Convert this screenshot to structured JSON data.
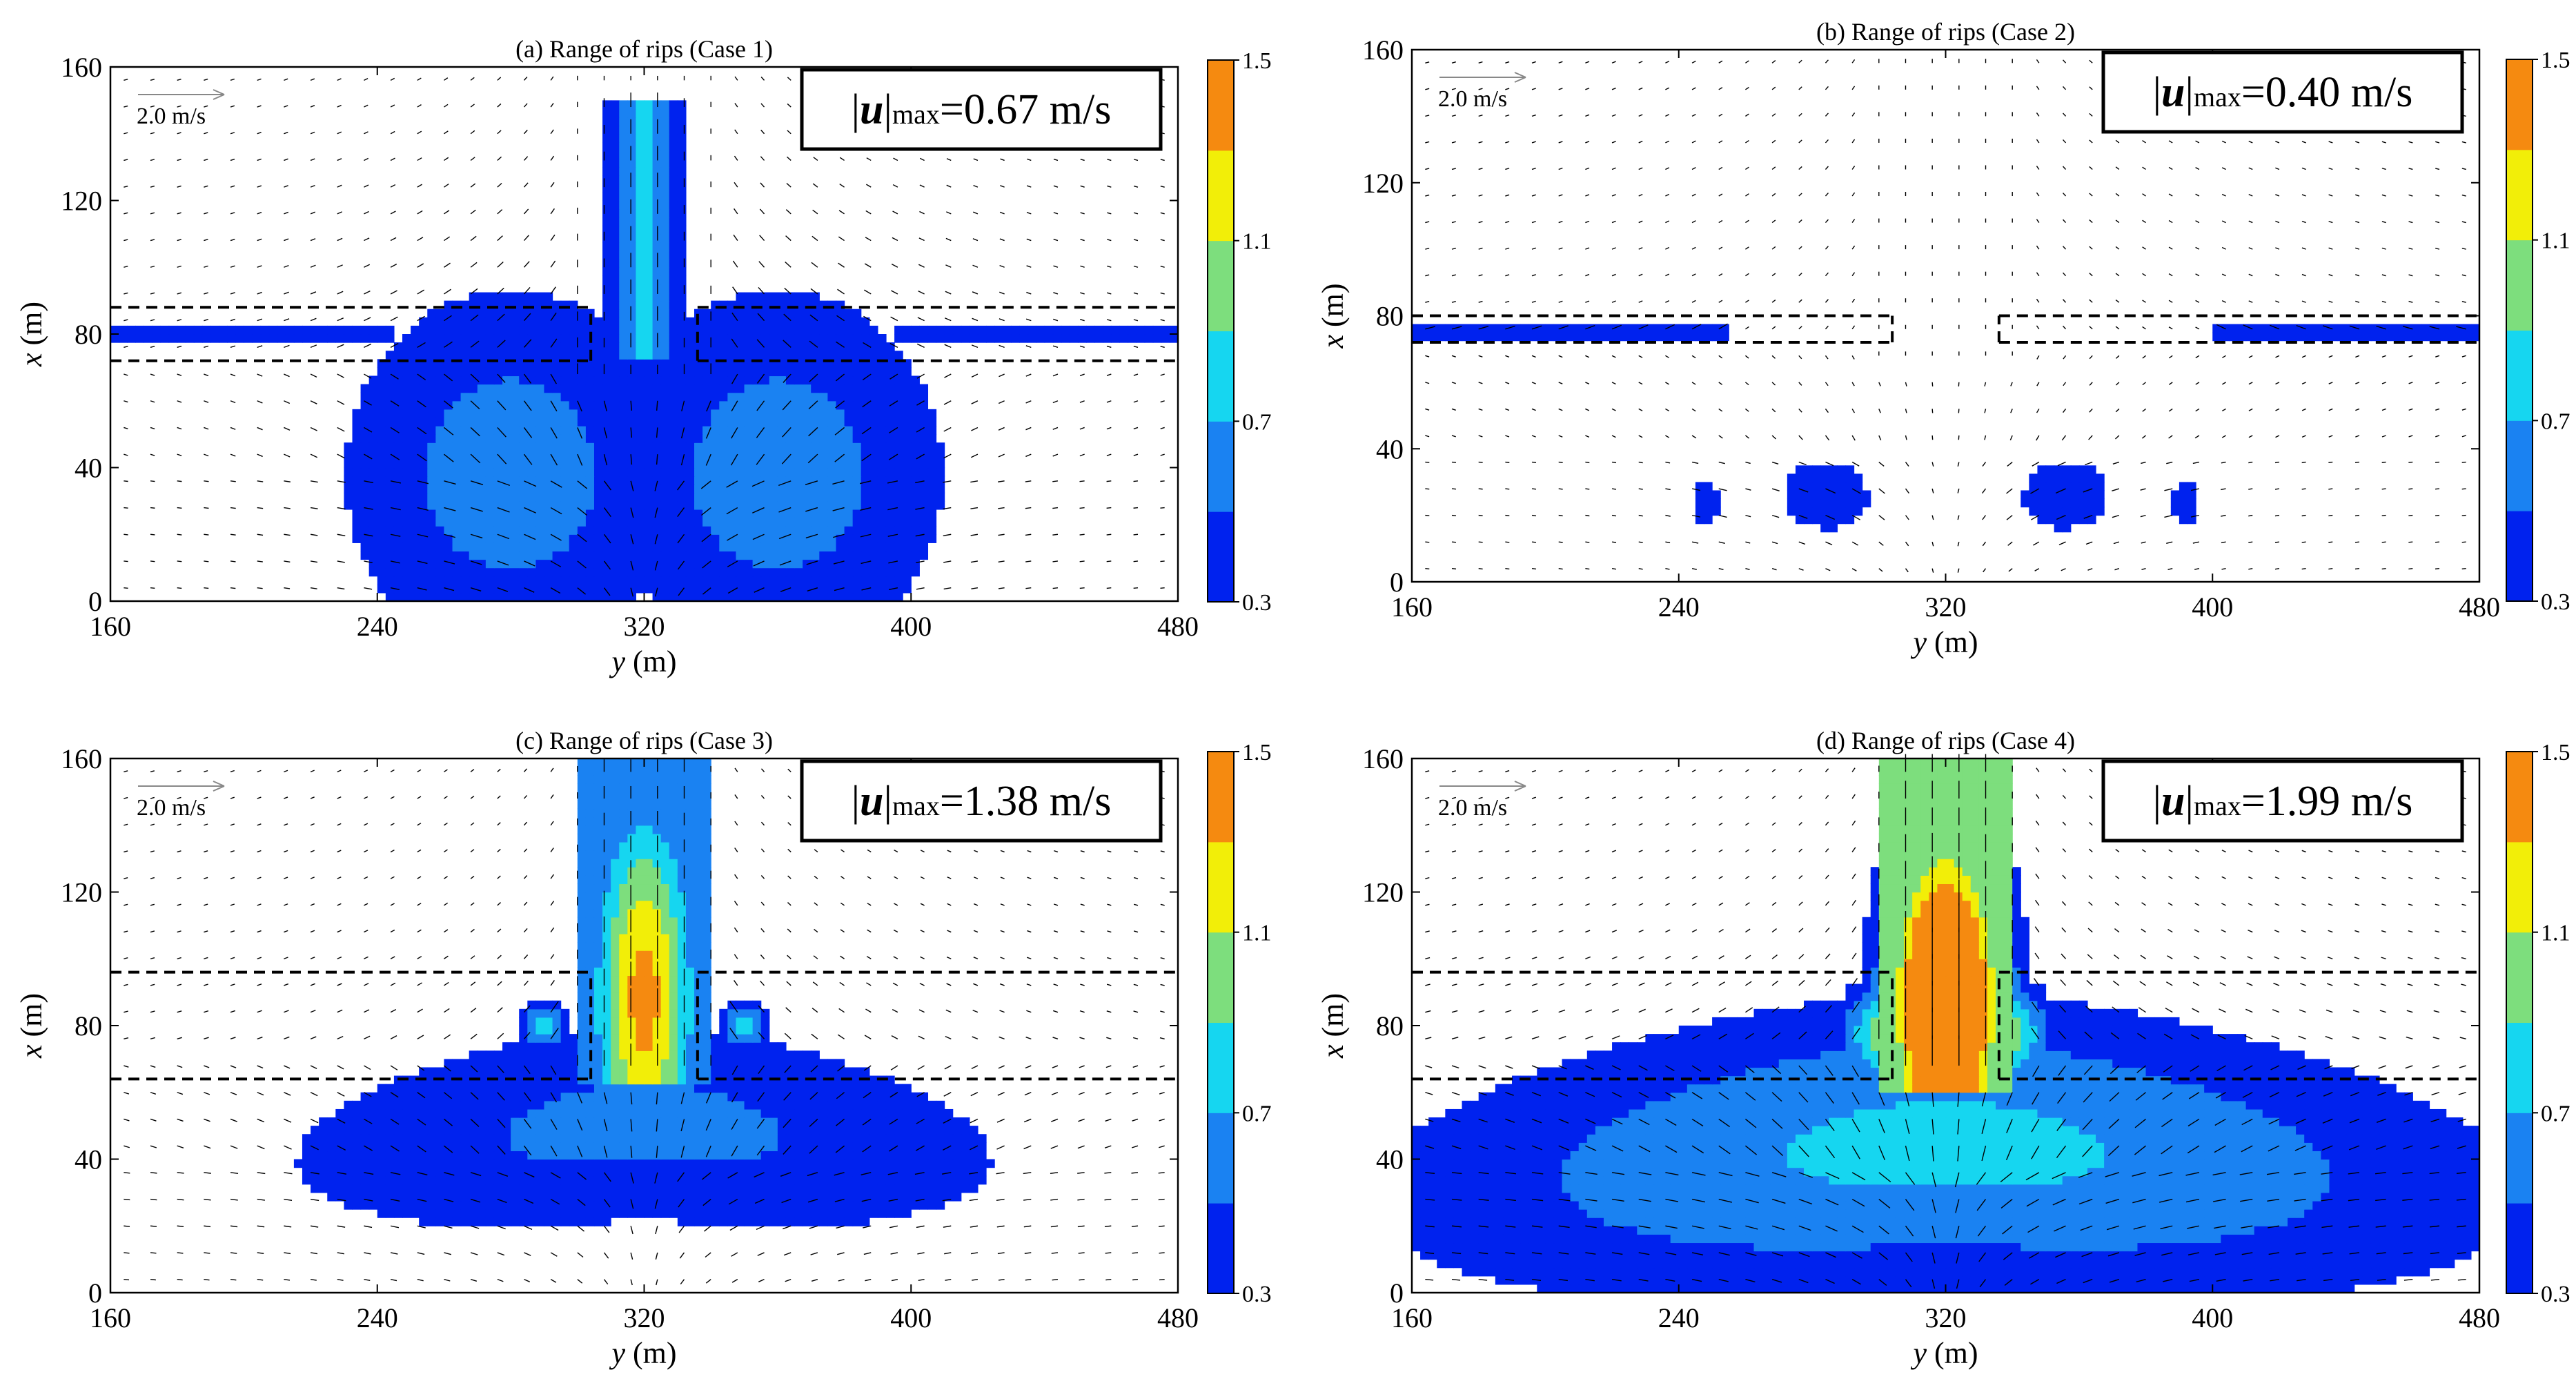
{
  "figure": {
    "panels": [
      {
        "id": "a",
        "title": "(a) Range of rips (Case 1)",
        "umax_prefix": "|",
        "umax_symbol": "u",
        "umax_bar": "|",
        "umax_sub": "max",
        "umax_value": "=0.67 m/s",
        "umax_num": 0.67,
        "x_top": 160,
        "ref_arrow_label": "2.0 m/s"
      },
      {
        "id": "b",
        "title": "(b) Range of rips (Case 2)",
        "umax_prefix": "|",
        "umax_symbol": "u",
        "umax_bar": "|",
        "umax_sub": "max",
        "umax_value": "=0.40 m/s",
        "umax_num": 0.4,
        "x_top": 160,
        "ref_arrow_label": "2.0 m/s"
      },
      {
        "id": "c",
        "title": "(c) Range of rips (Case 3)",
        "umax_prefix": "|",
        "umax_symbol": "u",
        "umax_bar": "|",
        "umax_sub": "max",
        "umax_value": "=1.38 m/s",
        "umax_num": 1.38,
        "x_top": 160,
        "ref_arrow_label": "2.0 m/s"
      },
      {
        "id": "d",
        "title": "(d) Range of rips (Case 4)",
        "umax_prefix": "|",
        "umax_symbol": "u",
        "umax_bar": "|",
        "umax_sub": "max",
        "umax_value": "=1.99 m/s",
        "umax_num": 1.99,
        "x_top": 160,
        "ref_arrow_label": "2.0 m/s"
      }
    ],
    "colors": {
      "background": "#ffffff",
      "arrow": "#000000",
      "dashed": "#000000"
    }
  },
  "chart_data": [
    {
      "type": "heatmap",
      "title": "(a) Range of rips (Case 1)",
      "xlabel": "y (m)",
      "ylabel": "x (m)",
      "xlim": [
        160,
        480
      ],
      "ylim": [
        0,
        160
      ],
      "xticks": [
        160,
        240,
        320,
        400,
        480
      ],
      "yticks": [
        0,
        40,
        80,
        120,
        160
      ],
      "colorbar": {
        "levels": [
          0.3,
          0.5,
          0.7,
          0.9,
          1.1,
          1.3,
          1.5
        ],
        "ticks": [
          0.3,
          0.7,
          1.1,
          1.5
        ],
        "colors": [
          "#0022ee",
          "#1a82f2",
          "#16d6f0",
          "#7dde7d",
          "#f2ee08",
          "#f58a10"
        ]
      },
      "max_speed_ms": 0.67,
      "reference_arrow_ms": 2.0,
      "breakwater_x": [
        72,
        88
      ],
      "gap_y": [
        304,
        336
      ]
    },
    {
      "type": "heatmap",
      "title": "(b) Range of rips (Case 2)",
      "xlabel": "y (m)",
      "ylabel": "x (m)",
      "xlim": [
        160,
        480
      ],
      "ylim": [
        0,
        160
      ],
      "xticks": [
        160,
        240,
        320,
        400,
        480
      ],
      "yticks": [
        0,
        40,
        80,
        120,
        160
      ],
      "colorbar": {
        "levels": [
          0.3,
          0.5,
          0.7,
          0.9,
          1.1,
          1.3,
          1.5
        ],
        "ticks": [
          0.3,
          0.7,
          1.1,
          1.5
        ],
        "colors": [
          "#0022ee",
          "#1a82f2",
          "#16d6f0",
          "#7dde7d",
          "#f2ee08",
          "#f58a10"
        ]
      },
      "max_speed_ms": 0.4,
      "reference_arrow_ms": 2.0,
      "breakwater_x": [
        72,
        80
      ],
      "gap_y": [
        304,
        336
      ]
    },
    {
      "type": "heatmap",
      "title": "(c) Range of rips (Case 3)",
      "xlabel": "y (m)",
      "ylabel": "x (m)",
      "xlim": [
        160,
        480
      ],
      "ylim": [
        0,
        160
      ],
      "xticks": [
        160,
        240,
        320,
        400,
        480
      ],
      "yticks": [
        0,
        40,
        80,
        120,
        160
      ],
      "colorbar": {
        "levels": [
          0.3,
          0.5,
          0.7,
          0.9,
          1.1,
          1.3,
          1.5
        ],
        "ticks": [
          0.3,
          0.7,
          1.1,
          1.5
        ],
        "colors": [
          "#0022ee",
          "#1a82f2",
          "#16d6f0",
          "#7dde7d",
          "#f2ee08",
          "#f58a10"
        ]
      },
      "max_speed_ms": 1.38,
      "reference_arrow_ms": 2.0,
      "breakwater_x": [
        64,
        96
      ],
      "gap_y": [
        304,
        336
      ]
    },
    {
      "type": "heatmap",
      "title": "(d) Range of rips (Case 4)",
      "xlabel": "y (m)",
      "ylabel": "x (m)",
      "xlim": [
        160,
        480
      ],
      "ylim": [
        0,
        160
      ],
      "xticks": [
        160,
        240,
        320,
        400,
        480
      ],
      "yticks": [
        0,
        40,
        80,
        120,
        160
      ],
      "colorbar": {
        "levels": [
          0.3,
          0.5,
          0.7,
          0.9,
          1.1,
          1.3,
          1.5
        ],
        "ticks": [
          0.3,
          0.7,
          1.1,
          1.5
        ],
        "colors": [
          "#0022ee",
          "#1a82f2",
          "#16d6f0",
          "#7dde7d",
          "#f2ee08",
          "#f58a10"
        ]
      },
      "max_speed_ms": 1.99,
      "reference_arrow_ms": 2.0,
      "breakwater_x": [
        64,
        96
      ],
      "gap_y": [
        304,
        336
      ]
    }
  ]
}
